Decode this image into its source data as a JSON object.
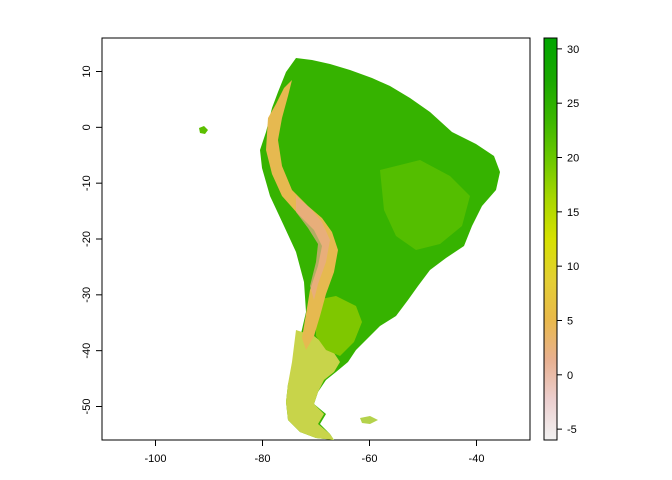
{
  "map": {
    "x_ticks": [
      "-100",
      "-80",
      "-60",
      "-40"
    ],
    "x_tick_values": [
      -100,
      -80,
      -60,
      -40
    ],
    "y_ticks": [
      "10",
      "0",
      "-10",
      "-20",
      "-30",
      "-40",
      "-50"
    ],
    "y_tick_values": [
      10,
      0,
      -10,
      -20,
      -30,
      -40,
      -50
    ],
    "x_range": [
      -110,
      -30
    ],
    "y_range": [
      -56,
      16
    ]
  },
  "legend": {
    "tick_labels": [
      "30",
      "25",
      "20",
      "15",
      "10",
      "5",
      "0",
      "-5"
    ],
    "tick_values": [
      30,
      25,
      20,
      15,
      10,
      5,
      0,
      -5
    ],
    "range": [
      -6,
      31
    ],
    "colors": [
      "#f2f2f2",
      "#eccfcf",
      "#e8b090",
      "#e9b94a",
      "#e3cf32",
      "#d6e100",
      "#a8d700",
      "#6bc800",
      "#3ab600",
      "#18a800",
      "#00a600"
    ]
  },
  "colors": {
    "lowland": "#2fb000",
    "forest": "#44b800",
    "plateau": "#58be00",
    "highland": "#a6d300",
    "andes": "#e6b950",
    "andes_peak": "#e8a98c",
    "patagonia": "#cfd64a"
  }
}
